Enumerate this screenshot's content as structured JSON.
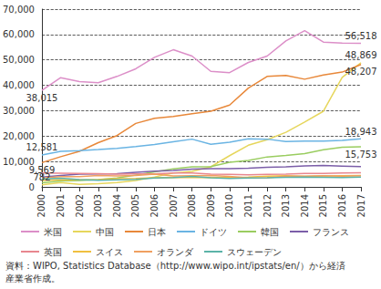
{
  "chart_data": {
    "type": "line",
    "note": "資料：WIPO, Statistics Database（http://www.wipo.int/ipstats/en/）から経済産業省作成。",
    "categories": [
      "2000",
      "2001",
      "2002",
      "2003",
      "2004",
      "2005",
      "2006",
      "2007",
      "2008",
      "2009",
      "2010",
      "2011",
      "2012",
      "2013",
      "2014",
      "2015",
      "2016",
      "2017"
    ],
    "series": [
      {
        "name": "米国",
        "color": "#dc8fc8",
        "values": [
          38015,
          43000,
          41500,
          41000,
          43500,
          46500,
          51000,
          54000,
          51500,
          45500,
          45000,
          49000,
          51500,
          57500,
          61500,
          57000,
          56600,
          56518
        ]
      },
      {
        "name": "中国",
        "color": "#e6d65c",
        "values": [
          782,
          1700,
          1000,
          1300,
          1700,
          2500,
          3900,
          5500,
          6100,
          7900,
          12300,
          16400,
          18600,
          21500,
          25500,
          29800,
          43100,
          48869
        ]
      },
      {
        "name": "日本",
        "color": "#e8883a",
        "values": [
          9569,
          11900,
          14000,
          17400,
          20200,
          25000,
          27000,
          27700,
          28800,
          29800,
          32200,
          38900,
          43500,
          43900,
          42400,
          44100,
          45200,
          48207
        ]
      },
      {
        "name": "ドイツ",
        "color": "#6ab4e3",
        "values": [
          12581,
          14000,
          14300,
          14700,
          15200,
          15900,
          16700,
          17800,
          18800,
          16800,
          17600,
          18900,
          18800,
          17900,
          18000,
          18000,
          18300,
          18943
        ]
      },
      {
        "name": "韓国",
        "color": "#9acd60",
        "values": [
          1600,
          2300,
          2500,
          2900,
          3500,
          4700,
          5900,
          7100,
          7900,
          8000,
          9700,
          10400,
          11800,
          12400,
          13100,
          14600,
          15600,
          15753
        ]
      },
      {
        "name": "フランス",
        "color": "#7b5ea8",
        "values": [
          3900,
          4500,
          5000,
          5100,
          5200,
          5700,
          6200,
          6500,
          7000,
          7200,
          7200,
          7400,
          7700,
          7900,
          8300,
          8400,
          8200,
          8000
        ]
      },
      {
        "name": "英国",
        "color": "#e8878f",
        "values": [
          5500,
          5400,
          5300,
          5200,
          5000,
          5100,
          5100,
          5500,
          5500,
          5000,
          4900,
          4800,
          4900,
          5000,
          5300,
          5300,
          5500,
          5600
        ]
      },
      {
        "name": "スイス",
        "color": "#f0c040",
        "values": [
          2600,
          2800,
          2800,
          2900,
          3200,
          3300,
          3600,
          3800,
          3700,
          3700,
          3700,
          3900,
          4200,
          4400,
          4100,
          4300,
          4400,
          4500
        ]
      },
      {
        "name": "オランダ",
        "color": "#f0a060",
        "values": [
          3500,
          4000,
          4000,
          4500,
          4300,
          4500,
          5000,
          4300,
          4400,
          4500,
          4100,
          3500,
          3600,
          4200,
          4200,
          4400,
          4200,
          4400
        ]
      },
      {
        "name": "スウェーデン",
        "color": "#5bb3a8",
        "values": [
          3100,
          3400,
          2900,
          2600,
          2800,
          3000,
          3500,
          3700,
          4100,
          3600,
          3300,
          3500,
          3600,
          3800,
          3900,
          3800,
          3700,
          3900
        ]
      }
    ],
    "annotations": [
      {
        "series": "米国",
        "x": "2000",
        "label": "38,015"
      },
      {
        "series": "米国",
        "x": "2017",
        "label": "56,518"
      },
      {
        "series": "中国",
        "x": "2017",
        "label": "48,869"
      },
      {
        "series": "日本",
        "x": "2017",
        "label": "48,207"
      },
      {
        "series": "ドイツ",
        "x": "2000",
        "label": "12,581"
      },
      {
        "series": "日本",
        "x": "2000",
        "label": "9,569"
      },
      {
        "series": "ドイツ",
        "x": "2017",
        "label": "18,943"
      },
      {
        "series": "韓国",
        "x": "2017",
        "label": "15,753"
      },
      {
        "series": "中国",
        "x": "2000",
        "label": "782"
      }
    ],
    "ylim": [
      0,
      70000
    ],
    "yticks": [
      0,
      {
        "value": 10000,
        "label": "10,000"
      },
      {
        "value": 20000,
        "label": "20,000"
      },
      {
        "value": 30000,
        "label": "30,000"
      },
      {
        "value": 40000,
        "label": "40,000"
      },
      {
        "value": 50000,
        "label": "50,000"
      },
      {
        "value": 60000,
        "label": "60,000"
      },
      {
        "value": 70000,
        "label": "70,000"
      }
    ],
    "grid": true,
    "legend": "bottom"
  }
}
